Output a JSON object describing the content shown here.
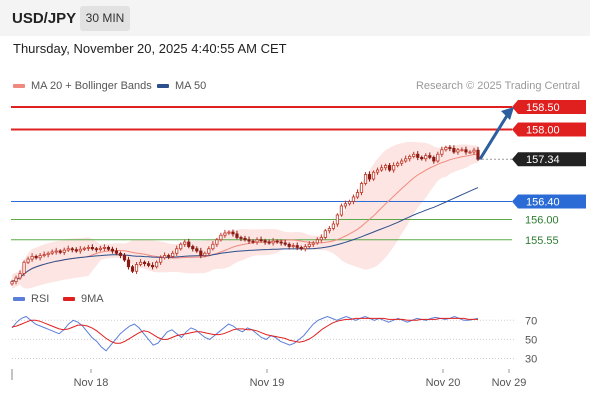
{
  "header": {
    "symbol": "USD/JPY",
    "interval": "30 MIN"
  },
  "timestamp": "Thursday, November 20, 2025 4:40:55 AM CET",
  "credit": "Research © 2025 Trading Central",
  "colors": {
    "resistance": "#e0201f",
    "support": "#2b6bd6",
    "support_secondary": "#5aaa4a",
    "arrow": "#2c5f9e",
    "candle_up": "#c0392b",
    "candle_down": "#8b1a12",
    "ma20": "#f08a7e",
    "bollinger": "#f9d0cb",
    "ma50": "#2c4f8e",
    "rsi": "#5b7fd8",
    "rsi_ma": "#e0201f",
    "current_price_bg": "#222222"
  },
  "chart_data": [
    {
      "type": "candlestick",
      "title": "",
      "legend": [
        {
          "name": "MA 20 + Bollinger Bands",
          "color": "#f08a7e"
        },
        {
          "name": "MA 50",
          "color": "#2c4f8e"
        }
      ],
      "y_range": [
        154.3,
        159.1
      ],
      "x_tick_labels": [
        "Nov 18",
        "Nov 19",
        "Nov 20",
        "Nov 29"
      ],
      "series_close": [
        154.62,
        154.7,
        154.8,
        155.05,
        155.12,
        155.18,
        155.15,
        155.2,
        155.22,
        155.25,
        155.28,
        155.3,
        155.27,
        155.32,
        155.35,
        155.33,
        155.3,
        155.34,
        155.36,
        155.38,
        155.35,
        155.33,
        155.36,
        155.38,
        155.34,
        155.3,
        155.25,
        155.2,
        155.1,
        154.95,
        154.85,
        155.0,
        155.05,
        155.02,
        154.98,
        154.95,
        155.05,
        155.15,
        155.2,
        155.18,
        155.25,
        155.35,
        155.45,
        155.5,
        155.4,
        155.35,
        155.3,
        155.2,
        155.25,
        155.35,
        155.45,
        155.55,
        155.65,
        155.7,
        155.72,
        155.68,
        155.6,
        155.58,
        155.55,
        155.52,
        155.5,
        155.55,
        155.53,
        155.5,
        155.48,
        155.52,
        155.5,
        155.48,
        155.45,
        155.4,
        155.42,
        155.38,
        155.35,
        155.4,
        155.45,
        155.48,
        155.55,
        155.6,
        155.75,
        155.8,
        155.9,
        156.1,
        156.3,
        156.35,
        156.4,
        156.5,
        156.6,
        156.8,
        157.0,
        156.9,
        157.05,
        157.1,
        157.15,
        157.2,
        157.1,
        157.2,
        157.25,
        157.3,
        157.35,
        157.4,
        157.45,
        157.38,
        157.35,
        157.42,
        157.38,
        157.3,
        157.45,
        157.55,
        157.6,
        157.58,
        157.5,
        157.55,
        157.55,
        157.5,
        157.5,
        157.54,
        157.34
      ],
      "levels": [
        {
          "price": "158.50",
          "kind": "resistance",
          "value": 158.5
        },
        {
          "price": "158.00",
          "kind": "resistance",
          "value": 158.0
        },
        {
          "price": "157.34",
          "kind": "current",
          "value": 157.34
        },
        {
          "price": "156.40",
          "kind": "support",
          "value": 156.4
        },
        {
          "price": "156.00",
          "kind": "support_secondary",
          "value": 156.0
        },
        {
          "price": "155.55",
          "kind": "support_secondary",
          "value": 155.55
        }
      ],
      "forecast_arrow": {
        "from": 157.34,
        "to": 158.5
      }
    },
    {
      "type": "line",
      "title": "",
      "legend": [
        {
          "name": "RSI",
          "color": "#5b7fd8"
        },
        {
          "name": "9MA",
          "color": "#e0201f"
        }
      ],
      "y_range": [
        20,
        85
      ],
      "y_tick_labels": [
        "70",
        "50",
        "30"
      ],
      "series": [
        {
          "name": "RSI",
          "values": [
            62,
            68,
            72,
            74,
            70,
            66,
            64,
            62,
            60,
            58,
            56,
            60,
            66,
            70,
            68,
            64,
            58,
            52,
            48,
            42,
            38,
            44,
            50,
            56,
            60,
            64,
            66,
            62,
            56,
            50,
            44,
            46,
            52,
            58,
            60,
            56,
            52,
            58,
            62,
            60,
            56,
            52,
            50,
            54,
            58,
            62,
            66,
            64,
            60,
            58,
            62,
            60,
            56,
            52,
            50,
            54,
            52,
            48,
            46,
            44,
            46,
            50,
            54,
            60,
            66,
            70,
            72,
            74,
            72,
            70,
            72,
            74,
            72,
            70,
            72,
            74,
            72,
            70,
            72,
            70,
            68,
            70,
            72,
            70,
            68,
            70,
            72,
            71,
            70,
            72,
            73,
            72,
            71,
            72,
            74,
            72,
            70,
            70,
            71,
            72
          ]
        },
        {
          "name": "9MA",
          "values": [
            63,
            64,
            66,
            68,
            70,
            70,
            69,
            67,
            65,
            63,
            61,
            60,
            61,
            63,
            65,
            65,
            64,
            62,
            59,
            55,
            51,
            48,
            46,
            46,
            48,
            51,
            54,
            57,
            59,
            58,
            55,
            52,
            50,
            50,
            52,
            54,
            55,
            56,
            57,
            58,
            58,
            57,
            56,
            55,
            55,
            56,
            58,
            60,
            61,
            61,
            60,
            60,
            59,
            57,
            55,
            54,
            53,
            52,
            51,
            49,
            48,
            47,
            48,
            50,
            53,
            57,
            61,
            64,
            67,
            69,
            70,
            71,
            71,
            72,
            72,
            72,
            72,
            72,
            72,
            72,
            71,
            71,
            71,
            71,
            70,
            70,
            70,
            71,
            71,
            71,
            71,
            72,
            72,
            72,
            72,
            72,
            72,
            71,
            71,
            71
          ]
        }
      ]
    }
  ]
}
